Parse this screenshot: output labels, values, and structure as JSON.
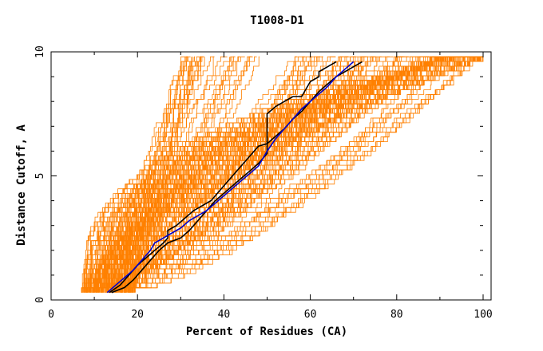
{
  "chart_data": {
    "type": "line",
    "title": "T1008-D1",
    "xlabel": "Percent of Residues (CA)",
    "ylabel": "Distance Cutoff, A",
    "xlim": [
      0,
      100
    ],
    "ylim": [
      0,
      10
    ],
    "x_ticks": [
      0,
      20,
      40,
      60,
      80,
      100
    ],
    "x_tick_labels": [
      "0",
      "20",
      "40",
      "60",
      "80",
      "100"
    ],
    "y_ticks": [
      0,
      5,
      10
    ],
    "y_tick_labels": [
      "0",
      "5",
      "10"
    ],
    "grid": false,
    "legend": "none",
    "colors": {
      "background_models": "#ff8000",
      "highlight_black": "#000000",
      "highlight_blue": "#0000cc"
    },
    "series": [
      {
        "color": "#000000",
        "x": [
          13.5,
          16,
          18,
          20,
          22,
          24,
          26,
          27,
          27,
          29,
          31,
          33,
          35,
          37,
          38,
          40,
          42,
          44,
          46,
          48,
          50,
          50,
          52,
          54,
          56,
          58,
          60,
          62,
          62,
          64,
          66
        ],
        "y": [
          0.3,
          0.6,
          1,
          1.4,
          1.7,
          2,
          2.3,
          2.5,
          2.8,
          3,
          3.3,
          3.6,
          3.8,
          4,
          4.2,
          4.6,
          5,
          5.4,
          5.8,
          6.2,
          6.3,
          7.5,
          7.8,
          8,
          8.2,
          8.2,
          8.8,
          9,
          9.2,
          9.4,
          9.6
        ]
      },
      {
        "color": "#000000",
        "x": [
          14,
          17,
          19,
          21,
          23,
          25,
          27,
          30,
          32,
          34,
          36,
          38,
          40,
          42,
          44,
          46,
          48,
          50,
          50,
          52,
          54,
          56,
          58,
          60,
          62,
          64,
          66,
          68,
          70,
          72
        ],
        "y": [
          0.3,
          0.5,
          0.8,
          1.2,
          1.6,
          2,
          2.3,
          2.5,
          2.8,
          3.2,
          3.6,
          4,
          4.3,
          4.6,
          4.9,
          5.2,
          5.5,
          5.9,
          6.3,
          6.6,
          6.9,
          7.3,
          7.6,
          8,
          8.4,
          8.7,
          9,
          9.2,
          9.4,
          9.6
        ]
      },
      {
        "color": "#0000cc",
        "x": [
          13,
          15,
          17,
          19,
          21,
          23,
          24,
          26,
          28,
          30,
          32,
          34,
          36,
          38,
          40,
          42,
          44,
          46,
          48,
          50,
          52,
          54,
          56,
          58,
          60,
          62,
          64,
          66,
          68,
          70
        ],
        "y": [
          0.3,
          0.6,
          0.9,
          1.2,
          1.6,
          2,
          2.3,
          2.5,
          2.7,
          2.9,
          3.2,
          3.4,
          3.6,
          3.9,
          4.2,
          4.5,
          4.8,
          5.1,
          5.4,
          6,
          6.5,
          6.9,
          7.3,
          7.7,
          8,
          8.3,
          8.6,
          9,
          9.3,
          9.6
        ]
      }
    ]
  }
}
